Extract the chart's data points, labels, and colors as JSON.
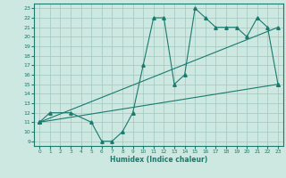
{
  "xlabel": "Humidex (Indice chaleur)",
  "xlim": [
    -0.5,
    23.5
  ],
  "ylim": [
    8.5,
    23.5
  ],
  "yticks": [
    9,
    10,
    11,
    12,
    13,
    14,
    15,
    16,
    17,
    18,
    19,
    20,
    21,
    22,
    23
  ],
  "xticks": [
    0,
    1,
    2,
    3,
    4,
    5,
    6,
    7,
    8,
    9,
    10,
    11,
    12,
    13,
    14,
    15,
    16,
    17,
    18,
    19,
    20,
    21,
    22,
    23
  ],
  "bg_color": "#cce8e0",
  "line_color": "#1a7a6e",
  "grid_color": "#a0c8be",
  "line1_x": [
    0,
    1,
    3,
    5,
    6,
    7,
    8,
    9,
    10,
    11,
    12,
    13,
    14,
    15,
    16,
    17,
    18,
    19,
    20,
    21,
    22,
    23
  ],
  "line1_y": [
    11,
    12,
    12,
    11,
    9,
    9,
    10,
    12,
    17,
    22,
    22,
    15,
    16,
    23,
    22,
    21,
    21,
    21,
    20,
    22,
    21,
    15
  ],
  "line2_x": [
    0,
    23
  ],
  "line2_y": [
    11,
    21
  ],
  "line3_x": [
    0,
    23
  ],
  "line3_y": [
    11,
    15
  ]
}
